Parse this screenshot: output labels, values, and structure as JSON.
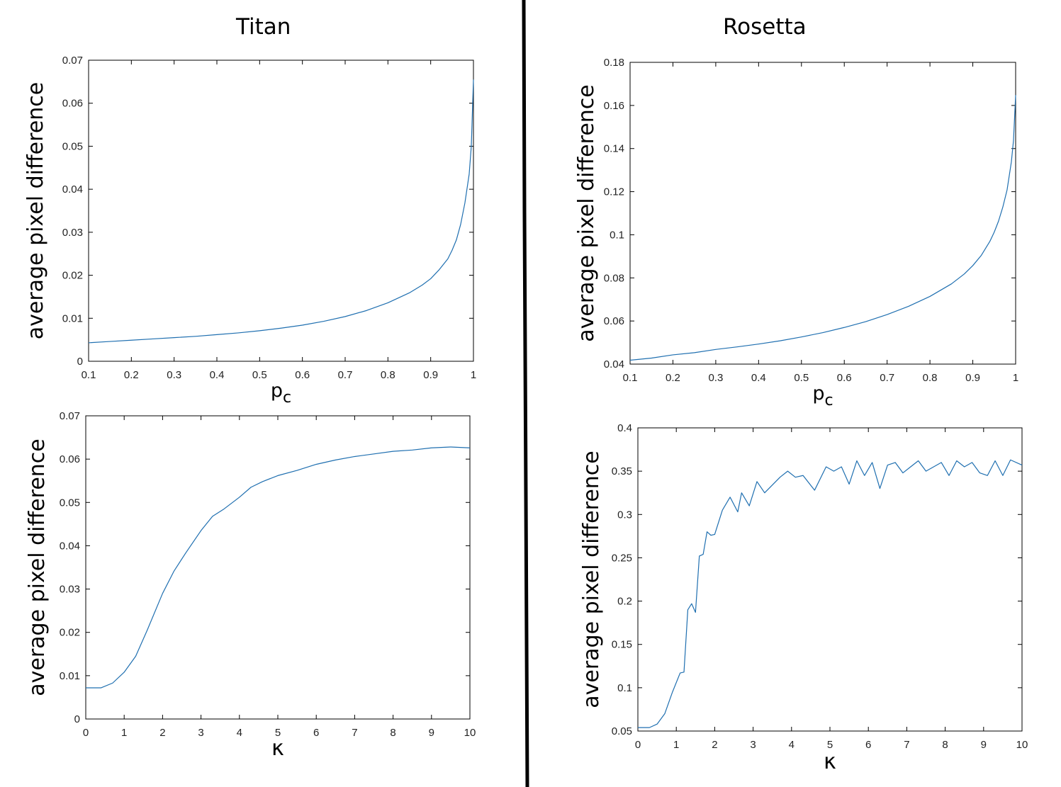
{
  "titles": {
    "left": "Titan",
    "right": "Rosetta"
  },
  "colors": {
    "line": "#1f6fb0",
    "axes": "#000000"
  },
  "chart_data": [
    {
      "id": "titan-pc",
      "type": "line",
      "xlabel_main": "p",
      "xlabel_sub": "c",
      "ylabel": "average pixel difference",
      "xlim": [
        0.1,
        1
      ],
      "ylim": [
        0,
        0.07
      ],
      "xticks": [
        "0.1",
        "0.2",
        "0.3",
        "0.4",
        "0.5",
        "0.6",
        "0.7",
        "0.8",
        "0.9",
        "1"
      ],
      "yticks": [
        "0",
        "0.01",
        "0.02",
        "0.03",
        "0.04",
        "0.05",
        "0.06",
        "0.07"
      ],
      "series": [
        {
          "x": [
            0.1,
            0.15,
            0.2,
            0.25,
            0.3,
            0.35,
            0.4,
            0.45,
            0.5,
            0.55,
            0.6,
            0.65,
            0.7,
            0.75,
            0.8,
            0.85,
            0.88,
            0.9,
            0.92,
            0.94,
            0.95,
            0.96,
            0.97,
            0.98,
            0.99,
            0.995,
            1.0
          ],
          "y": [
            0.0043,
            0.0046,
            0.0049,
            0.0052,
            0.0055,
            0.0058,
            0.0062,
            0.0066,
            0.0071,
            0.0077,
            0.0084,
            0.0093,
            0.0104,
            0.0118,
            0.0136,
            0.0159,
            0.0177,
            0.0192,
            0.0213,
            0.0238,
            0.0258,
            0.0282,
            0.0318,
            0.0368,
            0.0435,
            0.05,
            0.0655
          ]
        }
      ]
    },
    {
      "id": "rosetta-pc",
      "type": "line",
      "xlabel_main": "p",
      "xlabel_sub": "c",
      "ylabel": "average pixel difference",
      "xlim": [
        0.1,
        1
      ],
      "ylim": [
        0.04,
        0.18
      ],
      "xticks": [
        "0.1",
        "0.2",
        "0.3",
        "0.4",
        "0.5",
        "0.6",
        "0.7",
        "0.8",
        "0.9",
        "1"
      ],
      "yticks": [
        "0.04",
        "0.06",
        "0.08",
        "0.1",
        "0.12",
        "0.14",
        "0.16",
        "0.18"
      ],
      "series": [
        {
          "x": [
            0.1,
            0.15,
            0.2,
            0.25,
            0.3,
            0.35,
            0.4,
            0.45,
            0.5,
            0.55,
            0.6,
            0.65,
            0.7,
            0.75,
            0.8,
            0.85,
            0.88,
            0.9,
            0.92,
            0.94,
            0.95,
            0.96,
            0.97,
            0.98,
            0.99,
            0.995,
            1.0
          ],
          "y": [
            0.0418,
            0.0428,
            0.0443,
            0.0453,
            0.0468,
            0.048,
            0.0493,
            0.0508,
            0.0526,
            0.0546,
            0.057,
            0.0597,
            0.063,
            0.0668,
            0.0714,
            0.0772,
            0.0818,
            0.0857,
            0.0905,
            0.097,
            0.1012,
            0.1063,
            0.1128,
            0.1208,
            0.1338,
            0.1438,
            0.1648
          ]
        }
      ]
    },
    {
      "id": "titan-kappa",
      "type": "line",
      "xlabel_main": "κ",
      "xlabel_sub": "",
      "ylabel": "average pixel difference",
      "xlim": [
        0,
        10
      ],
      "ylim": [
        0,
        0.07
      ],
      "xticks": [
        "0",
        "1",
        "2",
        "3",
        "4",
        "5",
        "6",
        "7",
        "8",
        "9",
        "10"
      ],
      "yticks": [
        "0",
        "0.01",
        "0.02",
        "0.03",
        "0.04",
        "0.05",
        "0.06",
        "0.07"
      ],
      "series": [
        {
          "x": [
            0,
            0.4,
            0.7,
            1.0,
            1.3,
            1.6,
            2.0,
            2.3,
            2.6,
            3.0,
            3.3,
            3.6,
            4.0,
            4.3,
            4.6,
            5.0,
            5.5,
            6.0,
            6.5,
            7.0,
            7.5,
            8.0,
            8.5,
            9.0,
            9.5,
            10.0
          ],
          "y": [
            0.0072,
            0.0072,
            0.0083,
            0.0108,
            0.0145,
            0.0205,
            0.029,
            0.0342,
            0.0383,
            0.0435,
            0.0468,
            0.0485,
            0.0512,
            0.0535,
            0.0548,
            0.0562,
            0.0574,
            0.0588,
            0.0598,
            0.0606,
            0.0612,
            0.0618,
            0.0621,
            0.0626,
            0.0628,
            0.0626
          ]
        }
      ]
    },
    {
      "id": "rosetta-kappa",
      "type": "line",
      "xlabel_main": "κ",
      "xlabel_sub": "",
      "ylabel": "average pixel difference",
      "xlim": [
        0,
        10
      ],
      "ylim": [
        0.05,
        0.4
      ],
      "xticks": [
        "0",
        "1",
        "2",
        "3",
        "4",
        "5",
        "6",
        "7",
        "8",
        "9",
        "10"
      ],
      "yticks": [
        "0.05",
        "0.1",
        "0.15",
        "0.2",
        "0.25",
        "0.3",
        "0.35",
        "0.4"
      ],
      "series": [
        {
          "x": [
            0,
            0.3,
            0.5,
            0.7,
            0.9,
            1.1,
            1.2,
            1.3,
            1.4,
            1.5,
            1.6,
            1.7,
            1.8,
            1.9,
            2.0,
            2.2,
            2.4,
            2.6,
            2.7,
            2.9,
            3.1,
            3.3,
            3.5,
            3.7,
            3.9,
            4.1,
            4.3,
            4.6,
            4.9,
            5.1,
            5.3,
            5.5,
            5.7,
            5.9,
            6.1,
            6.3,
            6.5,
            6.7,
            6.9,
            7.1,
            7.3,
            7.5,
            7.7,
            7.9,
            8.1,
            8.3,
            8.5,
            8.7,
            8.9,
            9.1,
            9.3,
            9.5,
            9.7,
            10.0
          ],
          "y": [
            0.054,
            0.054,
            0.058,
            0.07,
            0.095,
            0.117,
            0.118,
            0.19,
            0.197,
            0.187,
            0.252,
            0.254,
            0.28,
            0.276,
            0.277,
            0.305,
            0.32,
            0.303,
            0.325,
            0.31,
            0.338,
            0.325,
            0.334,
            0.343,
            0.35,
            0.343,
            0.345,
            0.328,
            0.355,
            0.35,
            0.355,
            0.335,
            0.362,
            0.345,
            0.36,
            0.33,
            0.357,
            0.36,
            0.348,
            0.355,
            0.362,
            0.35,
            0.355,
            0.36,
            0.345,
            0.362,
            0.355,
            0.36,
            0.348,
            0.345,
            0.362,
            0.345,
            0.363,
            0.357
          ]
        }
      ]
    }
  ]
}
